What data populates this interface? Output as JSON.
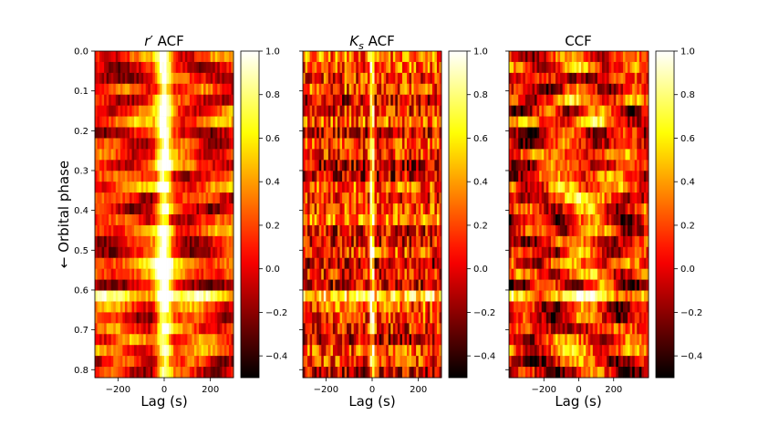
{
  "chart_data": [
    {
      "type": "heatmap",
      "title": "r′ ACF",
      "title_main": "r",
      "title_prime": "′",
      "title_rest": " ACF",
      "xlabel": "Lag (s)",
      "ylabel": "← Orbital phase",
      "xlim": [
        -300,
        300
      ],
      "ylim": [
        0.0,
        0.82
      ],
      "xticks": [
        -200,
        0,
        200
      ],
      "xtick_labels": [
        "−200",
        "0",
        "200"
      ],
      "yticks": [
        0.0,
        0.1,
        0.2,
        0.3,
        0.4,
        0.5,
        0.6,
        0.7,
        0.8
      ],
      "ytick_labels": [
        "0.0",
        "0.1",
        "0.2",
        "0.3",
        "0.4",
        "0.5",
        "0.6",
        "0.7",
        "0.8"
      ],
      "n_phase_bins": 30,
      "pattern": "acf_strong",
      "peak_row_phases": [
        0.55,
        0.61
      ],
      "colorbar": {
        "colormap": "hot",
        "vmin": -0.5,
        "vmax": 1.0,
        "ticks": [
          -0.4,
          -0.2,
          0.0,
          0.2,
          0.4,
          0.6,
          0.8,
          1.0
        ],
        "tick_labels": [
          "−0.4",
          "−0.2",
          "0.0",
          "0.2",
          "0.4",
          "0.6",
          "0.8",
          "1.0"
        ]
      }
    },
    {
      "type": "heatmap",
      "title": "Ks ACF",
      "title_main": "K",
      "title_sub": "s",
      "title_rest": " ACF",
      "xlabel": "Lag (s)",
      "ylabel": "",
      "xlim": [
        -300,
        300
      ],
      "ylim": [
        0.0,
        0.82
      ],
      "xticks": [
        -200,
        0,
        200
      ],
      "xtick_labels": [
        "−200",
        "0",
        "200"
      ],
      "yticks": [
        0.0,
        0.1,
        0.2,
        0.3,
        0.4,
        0.5,
        0.6,
        0.7,
        0.8
      ],
      "n_phase_bins": 30,
      "pattern": "acf_weak",
      "peak_row_phases": [
        0.02,
        0.42,
        0.61
      ],
      "colorbar": {
        "colormap": "hot",
        "vmin": -0.5,
        "vmax": 1.0,
        "ticks": [
          -0.4,
          -0.2,
          0.0,
          0.2,
          0.4,
          0.6,
          0.8,
          1.0
        ],
        "tick_labels": [
          "−0.4",
          "−0.2",
          "0.0",
          "0.2",
          "0.4",
          "0.6",
          "0.8",
          "1.0"
        ]
      }
    },
    {
      "type": "heatmap",
      "title": "CCF",
      "title_main": "CCF",
      "xlabel": "Lag (s)",
      "ylabel": "",
      "xlim": [
        -400,
        400
      ],
      "ylim": [
        0.0,
        0.82
      ],
      "xticks": [
        -200,
        0,
        200
      ],
      "xtick_labels": [
        "−200",
        "0",
        "200"
      ],
      "yticks": [
        0.0,
        0.1,
        0.2,
        0.3,
        0.4,
        0.5,
        0.6,
        0.7,
        0.8
      ],
      "n_phase_bins": 30,
      "pattern": "ccf",
      "peak_row_phases": [
        0.61
      ],
      "colorbar": {
        "colormap": "hot",
        "vmin": -0.5,
        "vmax": 1.0,
        "ticks": [
          -0.4,
          -0.2,
          0.0,
          0.2,
          0.4,
          0.6,
          0.8,
          1.0
        ],
        "tick_labels": [
          "−0.4",
          "−0.2",
          "0.0",
          "0.2",
          "0.4",
          "0.6",
          "0.8",
          "1.0"
        ]
      }
    }
  ]
}
